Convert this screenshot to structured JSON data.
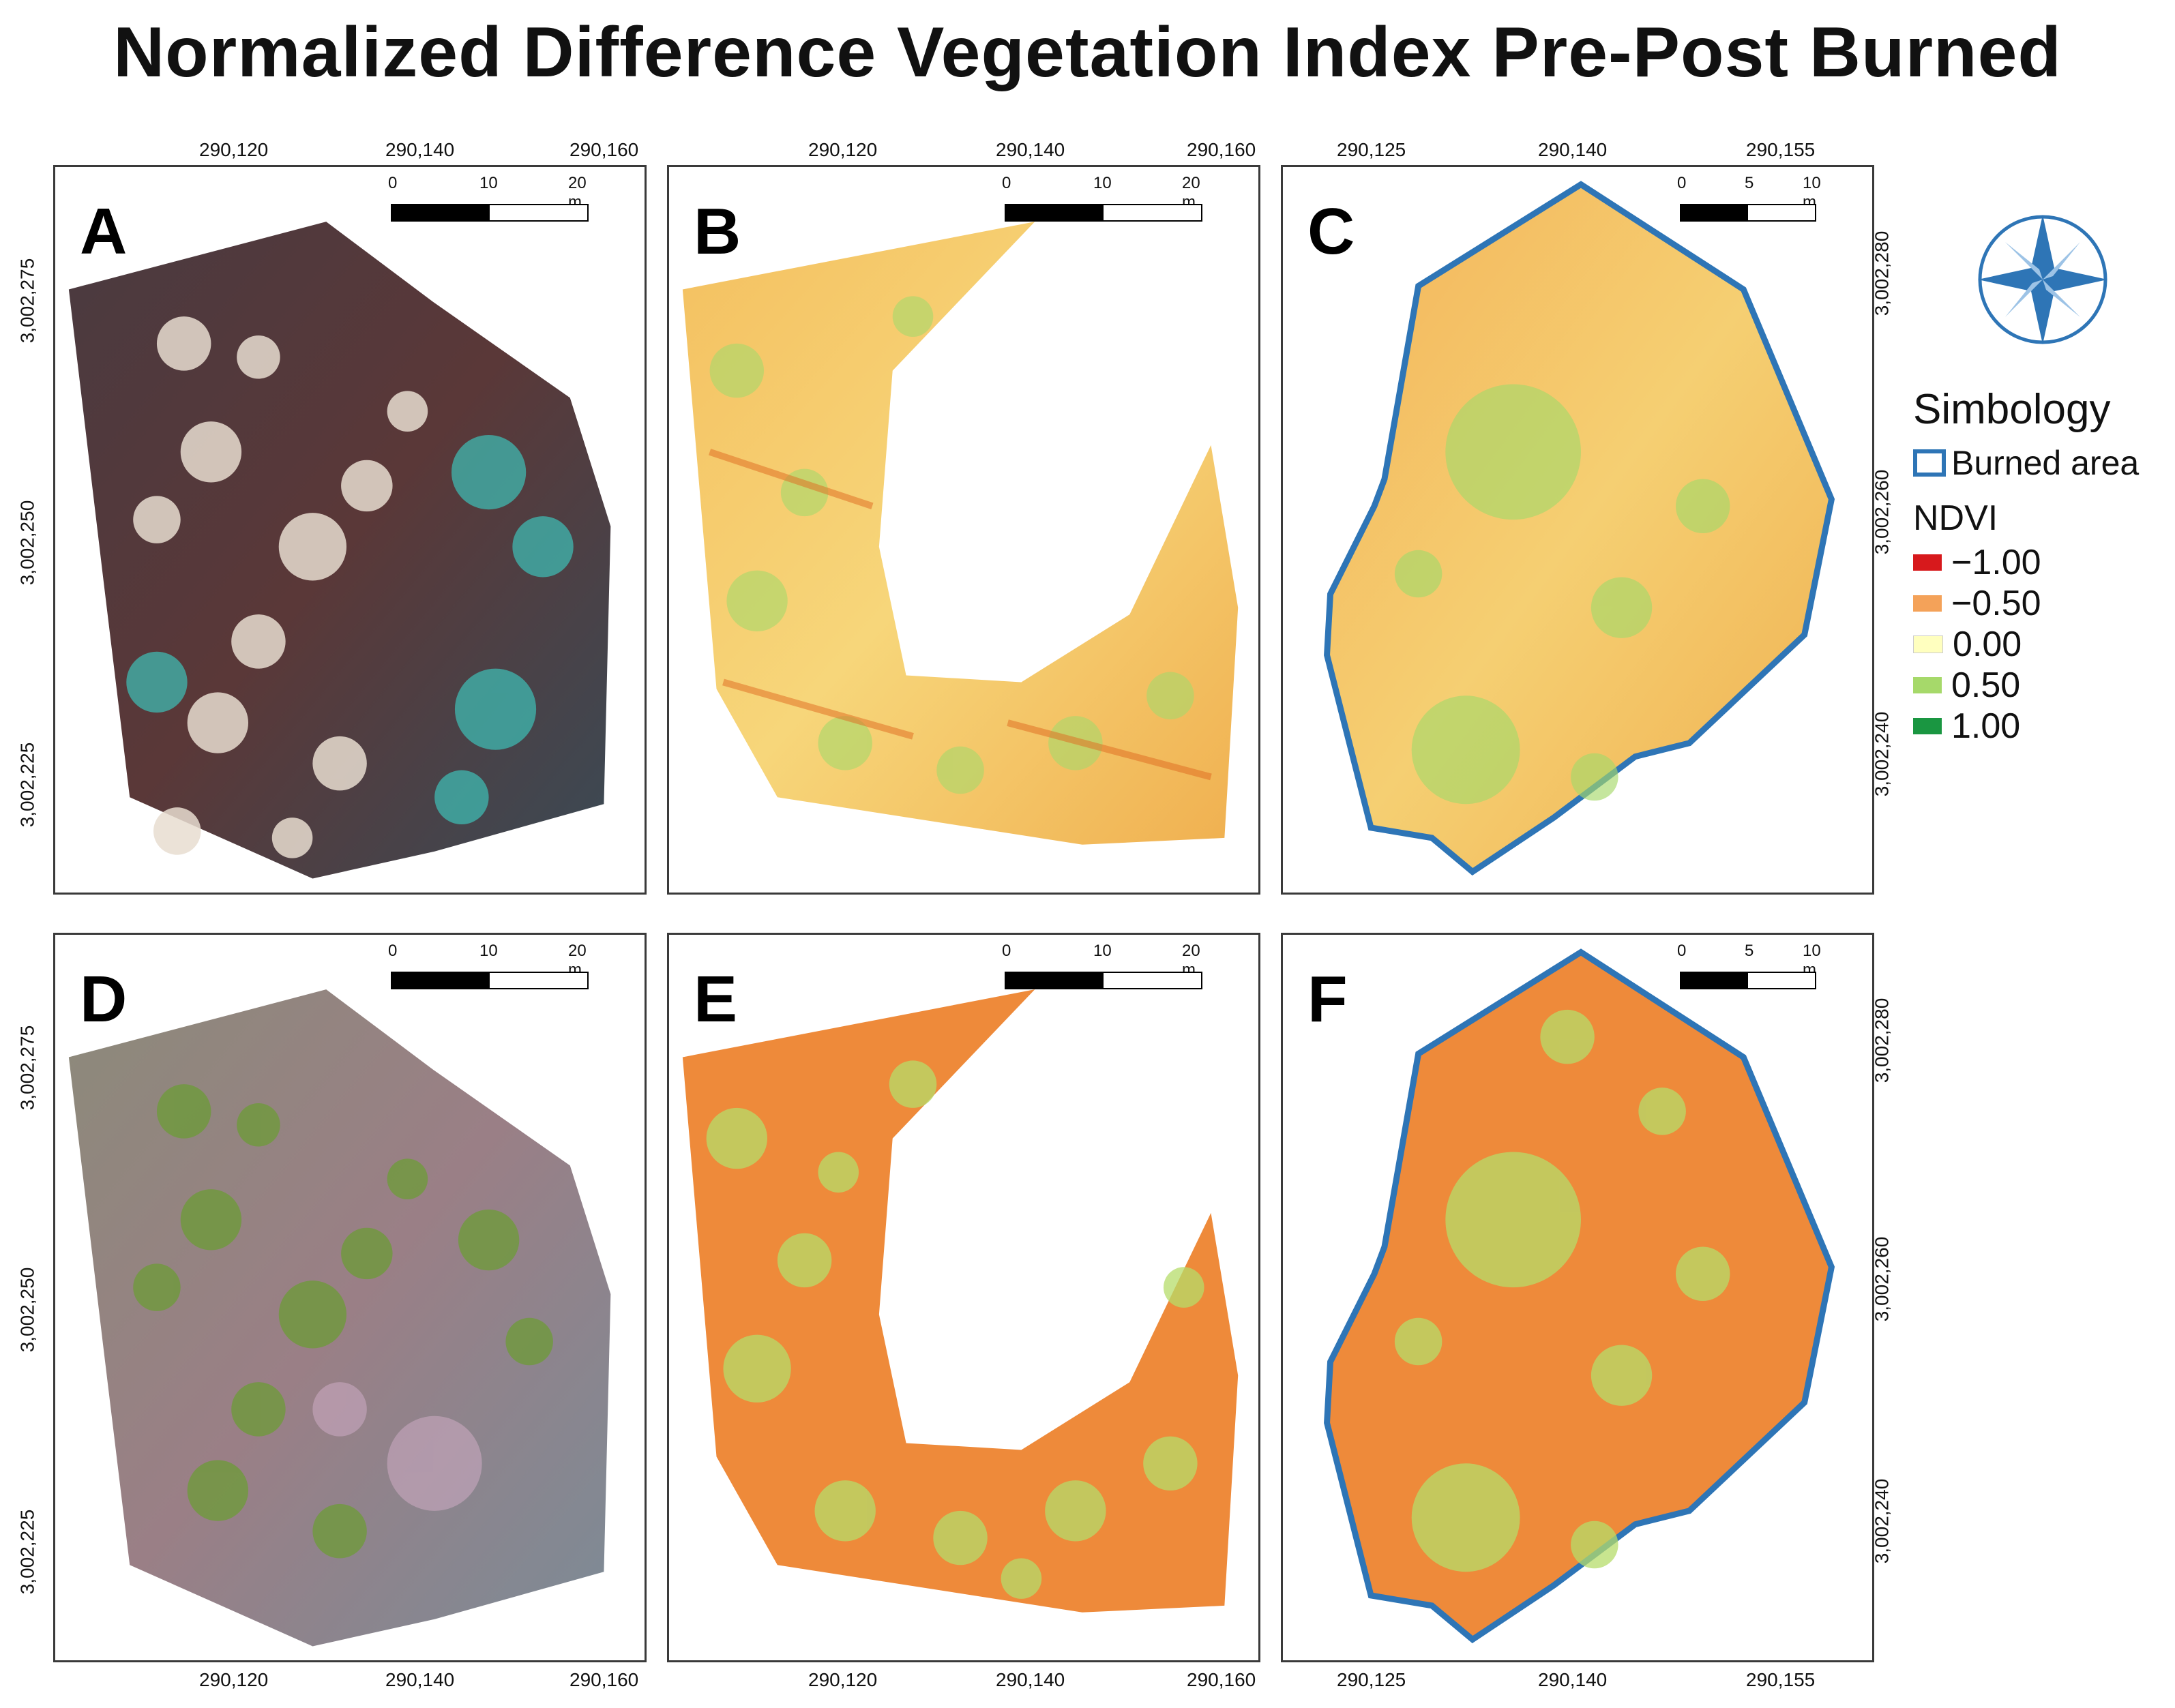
{
  "title": "Normalized Difference Vegetation Index Pre-Post Burned",
  "panels": [
    {
      "label": "A",
      "scale": [
        "0",
        "10",
        "20 m"
      ],
      "top_ticks": [
        "290,120",
        "290,140",
        "290,160"
      ],
      "left_ticks": [
        "3,002,275",
        "3,002,250",
        "3,002,225"
      ]
    },
    {
      "label": "B",
      "scale": [
        "0",
        "10",
        "20 m"
      ],
      "top_ticks": [
        "290,120",
        "290,140",
        "290,160"
      ]
    },
    {
      "label": "C",
      "scale": [
        "0",
        "5",
        "10 m"
      ],
      "top_ticks": [
        "290,125",
        "290,140",
        "290,155"
      ],
      "right_ticks": [
        "3,002,280",
        "3,002,260",
        "3,002,240"
      ]
    },
    {
      "label": "D",
      "scale": [
        "0",
        "10",
        "20 m"
      ],
      "bottom_ticks": [
        "290,120",
        "290,140",
        "290,160"
      ],
      "left_ticks": [
        "3,002,275",
        "3,002,250",
        "3,002,225"
      ]
    },
    {
      "label": "E",
      "scale": [
        "0",
        "10",
        "20 m"
      ],
      "bottom_ticks": [
        "290,120",
        "290,140",
        "290,160"
      ]
    },
    {
      "label": "F",
      "scale": [
        "0",
        "5",
        "10 m"
      ],
      "bottom_ticks": [
        "290,125",
        "290,140",
        "290,155"
      ],
      "right_ticks": [
        "3,002,280",
        "3,002,260",
        "3,002,240"
      ]
    }
  ],
  "legend": {
    "title": "Simbology",
    "burned_label": "Burned area",
    "burned_color": "#2e75b6",
    "ndvi_title": "NDVI",
    "items": [
      {
        "label": "−1.00",
        "color": "#d7191c"
      },
      {
        "label": "−0.50",
        "color": "#f4a259"
      },
      {
        "label": "0.00",
        "color": "#ffffbf"
      },
      {
        "label": "0.50",
        "color": "#a6d96a"
      },
      {
        "label": "1.00",
        "color": "#1a9641"
      }
    ]
  },
  "compass_icon": "compass-rose-icon"
}
